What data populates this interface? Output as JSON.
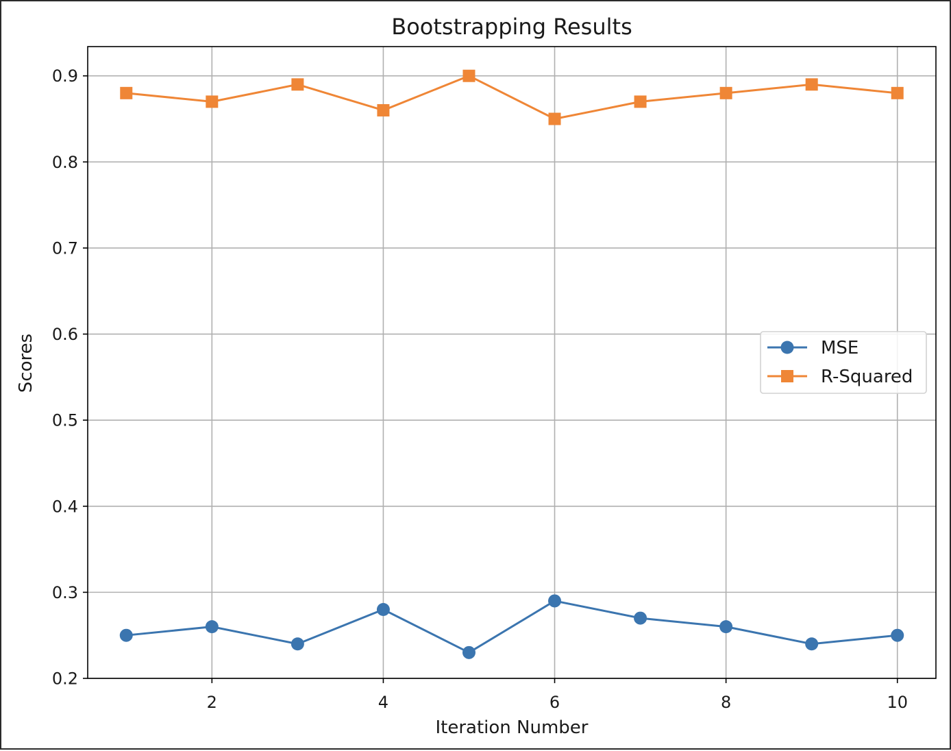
{
  "chart_data": {
    "type": "line",
    "title": "Bootstrapping Results",
    "xlabel": "Iteration Number",
    "ylabel": "Scores",
    "x": [
      1,
      2,
      3,
      4,
      5,
      6,
      7,
      8,
      9,
      10
    ],
    "xticks": [
      2,
      4,
      6,
      8,
      10
    ],
    "yticks": [
      0.2,
      0.3,
      0.4,
      0.5,
      0.6,
      0.7,
      0.8,
      0.9
    ],
    "xlim": [
      0.55,
      10.45
    ],
    "ylim": [
      0.2,
      0.934
    ],
    "grid": true,
    "legend_position": "center-right",
    "series": [
      {
        "name": "MSE",
        "values": [
          0.25,
          0.26,
          0.24,
          0.28,
          0.23,
          0.29,
          0.27,
          0.26,
          0.24,
          0.25
        ],
        "color": "#3b75af",
        "marker": "circle"
      },
      {
        "name": "R-Squared",
        "values": [
          0.88,
          0.87,
          0.89,
          0.86,
          0.9,
          0.85,
          0.87,
          0.88,
          0.89,
          0.88
        ],
        "color": "#ef8636",
        "marker": "square"
      }
    ]
  }
}
